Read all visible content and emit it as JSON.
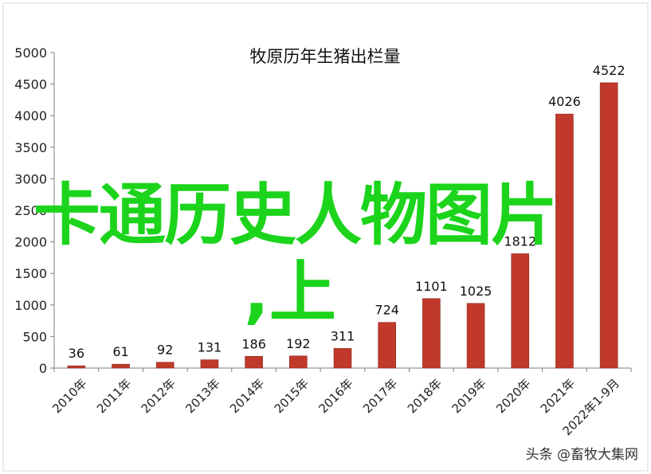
{
  "chart_data": {
    "type": "bar",
    "title": "牧原历年生猪出栏量",
    "categories": [
      "2010年",
      "2011年",
      "2012年",
      "2013年",
      "2014年",
      "2015年",
      "2016年",
      "2017年",
      "2018年",
      "2019年",
      "2020年",
      "2021年",
      "2022年1-9月"
    ],
    "values": [
      36,
      61,
      92,
      131,
      186,
      192,
      311,
      724,
      1101,
      1025,
      1812,
      4026,
      4522
    ],
    "data_labels": [
      "36",
      "61",
      "92",
      "131",
      "186",
      "192",
      "311",
      "724",
      "1101",
      "1025",
      "1812",
      "4026",
      "4522"
    ],
    "ylim": [
      0,
      5000
    ],
    "yticks": [
      0,
      500,
      1000,
      1500,
      2000,
      2500,
      3000,
      3500,
      4000,
      4500,
      5000
    ],
    "xlabel": "",
    "ylabel": "",
    "bar_color": "#c0392b",
    "grid": false,
    "legend": "none"
  },
  "overlay": {
    "line1": "卡通历史人物图片",
    "line2": ",上",
    "color": "#1bd41b"
  },
  "watermark": "头条 @畜牧大集网"
}
